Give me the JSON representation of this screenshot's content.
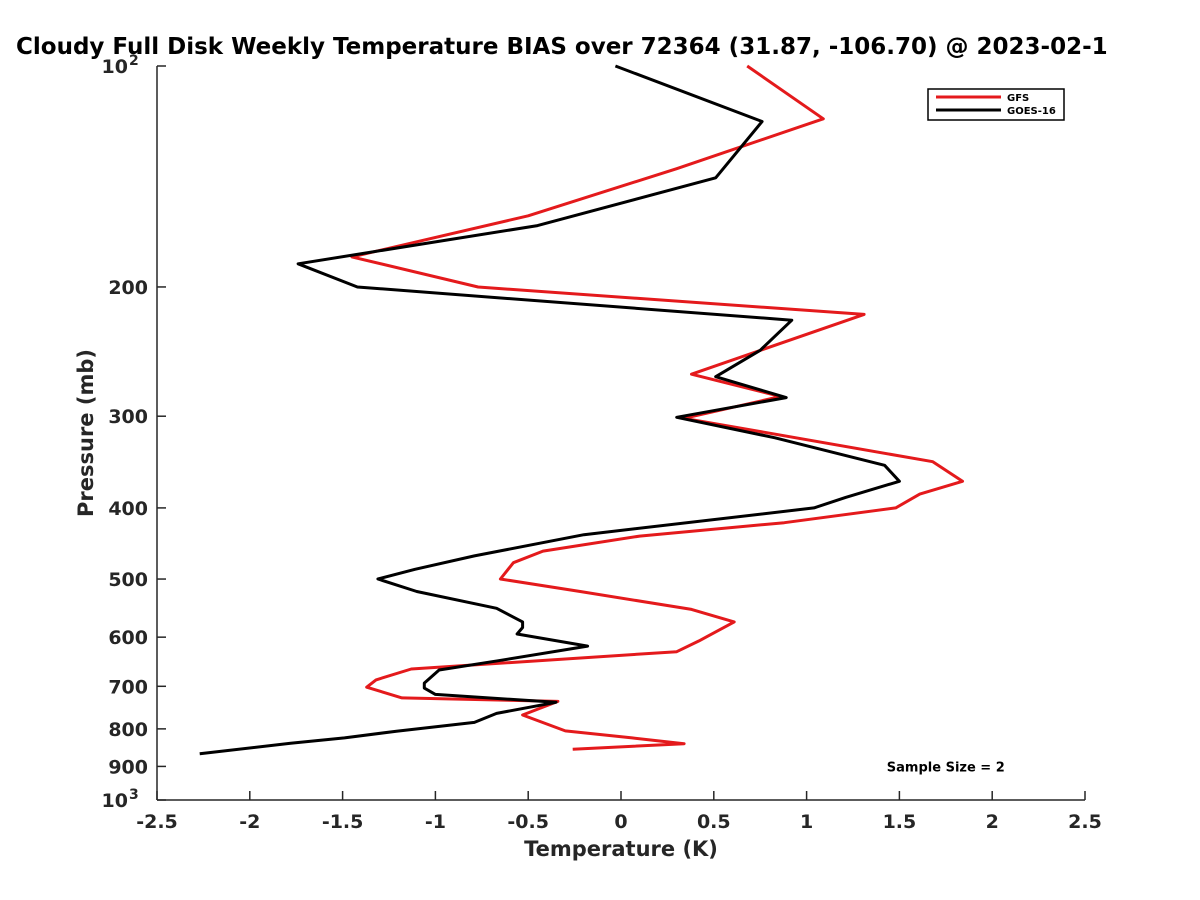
{
  "chart_data": {
    "type": "line",
    "title": "Cloudy Full Disk Weekly Temperature BIAS over 72364 (31.87, -106.70) @ 2023-02-1",
    "xlabel": "Temperature (K)",
    "ylabel": "Pressure (mb)",
    "xlim": [
      -2.5,
      2.5
    ],
    "ylim": [
      100,
      1000
    ],
    "y_scale": "log",
    "y_direction": "reversed",
    "grid": false,
    "legend_position": "top-right",
    "x_ticks": [
      {
        "value": -2.5,
        "label": "-2.5"
      },
      {
        "value": -2,
        "label": "-2"
      },
      {
        "value": -1.5,
        "label": "-1.5"
      },
      {
        "value": -1,
        "label": "-1"
      },
      {
        "value": -0.5,
        "label": "-0.5"
      },
      {
        "value": 0,
        "label": "0"
      },
      {
        "value": 0.5,
        "label": "0.5"
      },
      {
        "value": 1,
        "label": "1"
      },
      {
        "value": 1.5,
        "label": "1.5"
      },
      {
        "value": 2,
        "label": "2"
      },
      {
        "value": 2.5,
        "label": "2.5"
      }
    ],
    "y_ticks": [
      {
        "value": 100,
        "label": "10",
        "exp": "2"
      },
      {
        "value": 200,
        "label": "200"
      },
      {
        "value": 300,
        "label": "300"
      },
      {
        "value": 400,
        "label": "400"
      },
      {
        "value": 500,
        "label": "500"
      },
      {
        "value": 600,
        "label": "600"
      },
      {
        "value": 700,
        "label": "700"
      },
      {
        "value": 800,
        "label": "800"
      },
      {
        "value": 900,
        "label": "900"
      },
      {
        "value": 1000,
        "label": "10",
        "exp": "3"
      }
    ],
    "series": [
      {
        "name": "GFS",
        "color": "#e41a1c",
        "points": [
          {
            "x": 0.68,
            "y": 100
          },
          {
            "x": 1.09,
            "y": 118
          },
          {
            "x": 0.3,
            "y": 138
          },
          {
            "x": -0.5,
            "y": 160
          },
          {
            "x": -1.45,
            "y": 182
          },
          {
            "x": -0.77,
            "y": 200
          },
          {
            "x": 1.31,
            "y": 218
          },
          {
            "x": 0.38,
            "y": 263
          },
          {
            "x": 0.86,
            "y": 282
          },
          {
            "x": 0.34,
            "y": 302
          },
          {
            "x": 1.68,
            "y": 346
          },
          {
            "x": 1.84,
            "y": 368
          },
          {
            "x": 1.61,
            "y": 383
          },
          {
            "x": 1.48,
            "y": 400
          },
          {
            "x": 0.88,
            "y": 419
          },
          {
            "x": 0.1,
            "y": 437
          },
          {
            "x": -0.42,
            "y": 458
          },
          {
            "x": -0.58,
            "y": 475
          },
          {
            "x": -0.65,
            "y": 500
          },
          {
            "x": -0.22,
            "y": 520
          },
          {
            "x": 0.38,
            "y": 550
          },
          {
            "x": 0.61,
            "y": 572
          },
          {
            "x": 0.42,
            "y": 607
          },
          {
            "x": 0.3,
            "y": 628
          },
          {
            "x": -1.13,
            "y": 663
          },
          {
            "x": -1.32,
            "y": 686
          },
          {
            "x": -1.37,
            "y": 702
          },
          {
            "x": -1.18,
            "y": 726
          },
          {
            "x": -0.34,
            "y": 734
          },
          {
            "x": -0.53,
            "y": 766
          },
          {
            "x": -0.3,
            "y": 805
          },
          {
            "x": 0.06,
            "y": 823
          },
          {
            "x": 0.34,
            "y": 838
          },
          {
            "x": -0.26,
            "y": 853
          }
        ]
      },
      {
        "name": "GOES-16",
        "color": "#000000",
        "points": [
          {
            "x": -0.03,
            "y": 100
          },
          {
            "x": 0.76,
            "y": 119
          },
          {
            "x": 0.51,
            "y": 142
          },
          {
            "x": -0.45,
            "y": 165
          },
          {
            "x": -1.74,
            "y": 186
          },
          {
            "x": -1.42,
            "y": 200
          },
          {
            "x": 0.92,
            "y": 222
          },
          {
            "x": 0.75,
            "y": 244
          },
          {
            "x": 0.51,
            "y": 265
          },
          {
            "x": 0.89,
            "y": 283
          },
          {
            "x": 0.3,
            "y": 301
          },
          {
            "x": 0.83,
            "y": 321
          },
          {
            "x": 1.42,
            "y": 350
          },
          {
            "x": 1.5,
            "y": 368
          },
          {
            "x": 1.21,
            "y": 387
          },
          {
            "x": 1.04,
            "y": 400
          },
          {
            "x": -0.2,
            "y": 435
          },
          {
            "x": -0.79,
            "y": 465
          },
          {
            "x": -1.11,
            "y": 485
          },
          {
            "x": -1.31,
            "y": 500
          },
          {
            "x": -1.1,
            "y": 520
          },
          {
            "x": -0.67,
            "y": 548
          },
          {
            "x": -0.53,
            "y": 572
          },
          {
            "x": -0.53,
            "y": 582
          },
          {
            "x": -0.56,
            "y": 594
          },
          {
            "x": -0.18,
            "y": 617
          },
          {
            "x": -0.66,
            "y": 646
          },
          {
            "x": -0.98,
            "y": 665
          },
          {
            "x": -1.06,
            "y": 693
          },
          {
            "x": -1.06,
            "y": 704
          },
          {
            "x": -1.0,
            "y": 718
          },
          {
            "x": -0.35,
            "y": 736
          },
          {
            "x": -0.67,
            "y": 762
          },
          {
            "x": -0.79,
            "y": 784
          },
          {
            "x": -1.21,
            "y": 806
          },
          {
            "x": -1.49,
            "y": 823
          },
          {
            "x": -1.78,
            "y": 837
          },
          {
            "x": -2.27,
            "y": 865
          }
        ]
      }
    ],
    "annotations": [
      {
        "text": "Sample Size = 2",
        "x": 1.75,
        "y": 900
      }
    ]
  }
}
